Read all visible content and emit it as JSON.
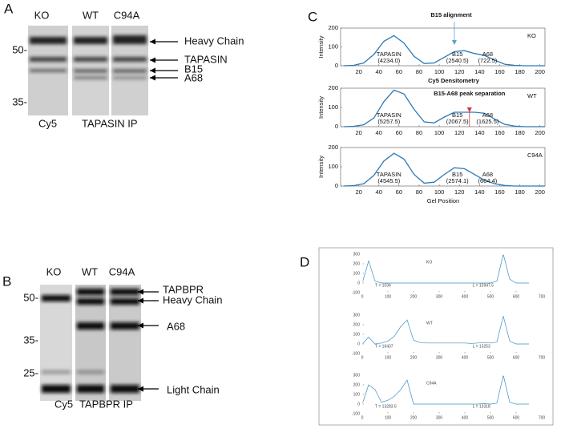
{
  "panel_a": {
    "letter": "A",
    "lanes": [
      "KO",
      "WT",
      "C94A"
    ],
    "mw": [
      "50-",
      "35-"
    ],
    "bands": [
      "Heavy Chain",
      "TAPASIN",
      "B15",
      "A68"
    ],
    "footer": [
      "Cy5",
      "TAPASIN IP"
    ]
  },
  "panel_b": {
    "letter": "B",
    "lanes": [
      "KO",
      "WT",
      "C94A"
    ],
    "mw": [
      "50-",
      "35-",
      "25-"
    ],
    "bands": [
      "TAPBPR",
      "Heavy Chain",
      "A68",
      "Light Chain"
    ],
    "footer": [
      "Cy5",
      "TAPBPR IP"
    ]
  },
  "panel_c": {
    "letter": "C",
    "title": "B15 alignment",
    "subtitle": "Cy5 Densitometry",
    "marker_note": "B15-A68 peak separation",
    "xlabel": "Gel Position",
    "ylabel": "Intensity",
    "color": "#2a7ab8",
    "xlim": [
      2,
      205
    ],
    "xticks": [
      20,
      40,
      60,
      80,
      100,
      120,
      140,
      160,
      180,
      200
    ],
    "ylim": [
      0,
      200
    ],
    "yticks": [
      0,
      100,
      200
    ],
    "x": [
      5,
      15,
      25,
      35,
      45,
      55,
      65,
      75,
      85,
      95,
      105,
      115,
      125,
      135,
      145,
      155,
      165,
      175,
      185,
      195,
      205
    ],
    "plots": [
      {
        "name": "KO",
        "values": [
          0,
          2,
          15,
          60,
          130,
          160,
          120,
          50,
          12,
          15,
          45,
          75,
          80,
          65,
          55,
          30,
          8,
          2,
          0,
          0,
          0
        ],
        "peaks": [
          {
            "label": "TAPASIN",
            "area": "(4234.0)"
          },
          {
            "label": "B15",
            "area": "(2540.5)"
          },
          {
            "label": "A68",
            "area": "(722.5)"
          }
        ]
      },
      {
        "name": "WT",
        "values": [
          0,
          2,
          10,
          45,
          130,
          190,
          170,
          90,
          25,
          20,
          50,
          75,
          75,
          75,
          70,
          40,
          12,
          3,
          0,
          0,
          0
        ],
        "peaks": [
          {
            "label": "TAPASIN",
            "area": "(5257.5)"
          },
          {
            "label": "B15",
            "area": "(2067.5)"
          },
          {
            "label": "A68",
            "area": "(1625.5)"
          }
        ]
      },
      {
        "name": "C94A",
        "values": [
          0,
          2,
          12,
          55,
          130,
          170,
          140,
          60,
          15,
          20,
          60,
          95,
          90,
          60,
          30,
          12,
          3,
          0,
          0,
          0,
          0
        ],
        "peaks": [
          {
            "label": "TAPASIN",
            "area": "(4545.5)"
          },
          {
            "label": "B15",
            "area": "(2574.1)"
          },
          {
            "label": "A68",
            "area": "(664.4)"
          }
        ]
      }
    ]
  },
  "panel_d": {
    "letter": "D",
    "color": "#3c8fc4",
    "xlim": [
      0,
      700
    ],
    "xticks": [
      0,
      100,
      200,
      300,
      400,
      500,
      600,
      700
    ],
    "ylim": [
      -100,
      300
    ],
    "yticks": [
      -100,
      0,
      100,
      200,
      300
    ],
    "x": [
      0,
      25,
      50,
      75,
      100,
      125,
      150,
      175,
      200,
      225,
      250,
      275,
      300,
      325,
      350,
      375,
      400,
      425,
      450,
      475,
      500,
      525,
      550,
      575,
      600,
      625,
      650
    ],
    "plots": [
      {
        "name": "KO",
        "t_label": "T = 1034",
        "l_label": "L = 15947.5",
        "values": [
          0,
          230,
          20,
          0,
          0,
          0,
          0,
          0,
          0,
          0,
          0,
          0,
          0,
          0,
          0,
          0,
          0,
          0,
          0,
          0,
          0,
          20,
          300,
          40,
          0,
          0,
          0
        ]
      },
      {
        "name": "WT",
        "t_label": "T = 16437",
        "l_label": "L = 13253",
        "values": [
          0,
          70,
          0,
          10,
          30,
          80,
          180,
          250,
          40,
          15,
          10,
          10,
          10,
          10,
          10,
          10,
          10,
          5,
          10,
          15,
          10,
          20,
          290,
          30,
          0,
          0,
          0
        ]
      },
      {
        "name": "C94A",
        "t_label": "T = 13283.5",
        "l_label": "L = 13318",
        "values": [
          0,
          200,
          150,
          20,
          40,
          80,
          150,
          250,
          0,
          0,
          0,
          0,
          0,
          0,
          0,
          0,
          0,
          0,
          0,
          5,
          0,
          10,
          300,
          20,
          0,
          0,
          0
        ]
      }
    ]
  }
}
